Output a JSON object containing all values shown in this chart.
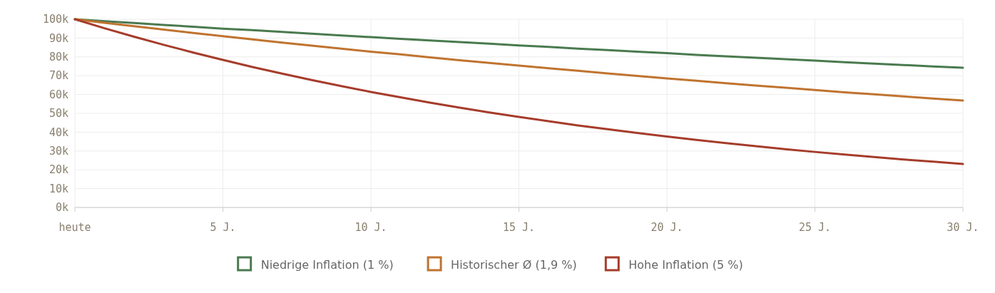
{
  "chart_data": {
    "type": "line",
    "x": [
      0,
      1,
      2,
      3,
      4,
      5,
      6,
      7,
      8,
      9,
      10,
      11,
      12,
      13,
      14,
      15,
      16,
      17,
      18,
      19,
      20,
      21,
      22,
      23,
      24,
      25,
      26,
      27,
      28,
      29,
      30
    ],
    "series": [
      {
        "name": "Niedrige Inflation (1 %)",
        "color": "#4a7a4f",
        "values": [
          100000,
          99000,
          98000,
          97000,
          96000,
          95000,
          94200,
          93300,
          92300,
          91400,
          90500,
          89600,
          88700,
          87900,
          87000,
          86100,
          85300,
          84400,
          83600,
          82800,
          82000,
          81100,
          80300,
          79500,
          78800,
          78000,
          77200,
          76400,
          75700,
          74900,
          74200
        ]
      },
      {
        "name": "Historischer Ø (1,9 %)",
        "color": "#c0732f",
        "values": [
          100000,
          98100,
          96300,
          94500,
          92700,
          91000,
          89300,
          87600,
          86000,
          84400,
          82800,
          81300,
          79700,
          78200,
          76800,
          75400,
          74000,
          72600,
          71200,
          69900,
          68600,
          67300,
          66000,
          64800,
          63600,
          62400,
          61200,
          60100,
          59000,
          57900,
          56800
        ]
      },
      {
        "name": "Hohe Inflation (5 %)",
        "color": "#a63c2b",
        "values": [
          100000,
          95200,
          90700,
          86400,
          82300,
          78400,
          74600,
          71100,
          67700,
          64500,
          61400,
          58500,
          55700,
          53000,
          50500,
          48100,
          45800,
          43600,
          41600,
          39600,
          37700,
          35900,
          34200,
          32600,
          31000,
          29500,
          28100,
          26800,
          25500,
          24300,
          23100
        ]
      }
    ],
    "xlim": [
      0,
      30
    ],
    "xticks": [
      {
        "value": 0,
        "label": "heute"
      },
      {
        "value": 5,
        "label": "5 J."
      },
      {
        "value": 10,
        "label": "10 J."
      },
      {
        "value": 15,
        "label": "15 J."
      },
      {
        "value": 20,
        "label": "20 J."
      },
      {
        "value": 25,
        "label": "25 J."
      },
      {
        "value": 30,
        "label": "30 J."
      }
    ],
    "ylim": [
      0,
      100000
    ],
    "yticks": [
      {
        "value": 0,
        "label": "0k"
      },
      {
        "value": 10000,
        "label": "10k"
      },
      {
        "value": 20000,
        "label": "20k"
      },
      {
        "value": 30000,
        "label": "30k"
      },
      {
        "value": 40000,
        "label": "40k"
      },
      {
        "value": 50000,
        "label": "50k"
      },
      {
        "value": 60000,
        "label": "60k"
      },
      {
        "value": 70000,
        "label": "70k"
      },
      {
        "value": 80000,
        "label": "80k"
      },
      {
        "value": 90000,
        "label": "90k"
      },
      {
        "value": 100000,
        "label": "100k"
      }
    ],
    "grid": true,
    "legend": "bottom",
    "marker": "none",
    "line_style": "solid"
  }
}
